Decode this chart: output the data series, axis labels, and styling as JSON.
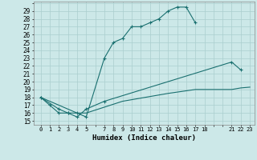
{
  "xlabel": "Humidex (Indice chaleur)",
  "bg_color": "#cce8e8",
  "grid_color": "#aacece",
  "line_color": "#1a7070",
  "xlim": [
    -0.8,
    23.5
  ],
  "ylim": [
    14.5,
    30.2
  ],
  "xtick_vals": [
    0,
    1,
    2,
    3,
    4,
    5,
    7,
    8,
    9,
    10,
    11,
    12,
    13,
    14,
    15,
    16,
    17,
    18,
    21,
    22,
    23
  ],
  "xtick_labels": [
    "0",
    "1",
    "2",
    "3",
    "4",
    "5",
    "7",
    "8",
    "9",
    "10",
    "11",
    "12",
    "13",
    "14",
    "15",
    "16",
    "17",
    "18",
    "21",
    "22",
    "23"
  ],
  "ytick_vals": [
    15,
    16,
    17,
    18,
    19,
    20,
    21,
    22,
    23,
    24,
    25,
    26,
    27,
    28,
    29
  ],
  "line1_x": [
    0,
    1,
    2,
    3,
    4,
    5,
    7,
    8,
    9,
    10,
    11,
    12,
    13,
    14,
    15,
    16,
    17
  ],
  "line1_y": [
    18,
    17,
    16,
    16,
    16,
    15.5,
    23,
    25,
    25.5,
    27,
    27,
    27.5,
    28,
    29,
    29.5,
    29.5,
    27.5
  ],
  "line2_x": [
    0,
    2,
    3,
    4,
    5,
    7,
    21,
    22
  ],
  "line2_y": [
    18,
    16.5,
    16,
    15.5,
    16.5,
    17.5,
    22.5,
    21.5
  ],
  "line3_x": [
    0,
    2,
    3,
    4,
    5,
    9,
    14,
    17,
    18,
    21,
    22,
    23
  ],
  "line3_y": [
    18,
    17,
    16.5,
    16,
    16,
    17.5,
    18.5,
    19,
    19,
    19,
    19.2,
    19.3
  ]
}
